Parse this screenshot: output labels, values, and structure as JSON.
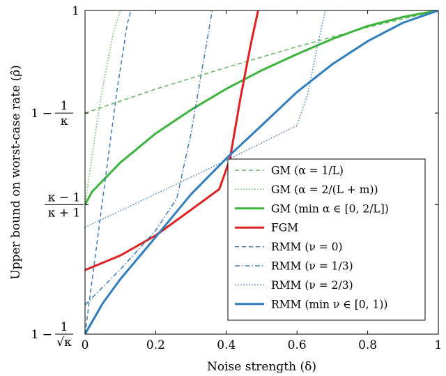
{
  "chart_data": {
    "type": "line",
    "xlabel": "Noise strength (δ)",
    "ylabel": "Upper bound on worst-case rate (ρ̂)",
    "xlim": [
      0,
      1
    ],
    "y_axis_note": "nonlinear categorical-style axis; y values expressed on a 0–1 normalized scale between bottom tick (1 − 1/√κ) and top tick (1)",
    "ylim": [
      0,
      1
    ],
    "x_ticks": [
      "0",
      "0.2",
      "0.4",
      "0.6",
      "0.8",
      "1"
    ],
    "x_tick_values": [
      0,
      0.2,
      0.4,
      0.6,
      0.8,
      1
    ],
    "y_ticks": [
      {
        "value": 0,
        "numerator": "1",
        "denominator": "√κ",
        "prefix": "1 −"
      },
      {
        "value": 0.4,
        "numerator": "κ − 1",
        "denominator": "κ + 1",
        "prefix": ""
      },
      {
        "value": 0.683,
        "numerator": "1",
        "denominator": "κ",
        "prefix": "1 −"
      },
      {
        "value": 1,
        "label": "1"
      }
    ],
    "grid": false,
    "legend_position": "bottom-right",
    "series": [
      {
        "name": "GM (α = 1/L)",
        "color": "#5fb55f",
        "dash": "dashed",
        "width": 1.5,
        "x": [
          0,
          0.2,
          0.4,
          0.6,
          0.8,
          1
        ],
        "y": [
          0.683,
          0.757,
          0.824,
          0.888,
          0.948,
          1
        ]
      },
      {
        "name": "GM (α = 2/(L + m))",
        "color": "#5fb55f",
        "dash": "dotted",
        "width": 1.5,
        "x": [
          0,
          0.02,
          0.04,
          0.06,
          0.08,
          0.1,
          1
        ],
        "y": [
          0.4,
          0.55,
          0.7,
          0.82,
          0.93,
          1,
          1
        ]
      },
      {
        "name": "GM (min α ∈ [0, 2/L])",
        "color": "#3cb43c",
        "dash": "solid",
        "width": 3,
        "x": [
          0,
          0.02,
          0.1,
          0.2,
          0.3,
          0.4,
          0.5,
          0.6,
          0.7,
          0.8,
          0.9,
          1
        ],
        "y": [
          0.4,
          0.44,
          0.53,
          0.62,
          0.693,
          0.758,
          0.815,
          0.865,
          0.912,
          0.952,
          0.98,
          1
        ]
      },
      {
        "name": "FGM",
        "color": "#e02020",
        "dash": "solid",
        "width": 3,
        "x": [
          0,
          0.1,
          0.2,
          0.3,
          0.38,
          0.41,
          0.44,
          0.47,
          0.49
        ],
        "y": [
          0.198,
          0.243,
          0.305,
          0.384,
          0.448,
          0.54,
          0.73,
          0.9,
          1
        ]
      },
      {
        "name": "RMM (ν = 0)",
        "color": "#3a7ab8",
        "dash": "dashed",
        "width": 1.5,
        "x": [
          0,
          0.03,
          0.06,
          0.09,
          0.12,
          0.13
        ],
        "y": [
          0,
          0.25,
          0.5,
          0.75,
          0.96,
          1
        ]
      },
      {
        "name": "RMM (ν = 1/3)",
        "color": "#3a7ab8",
        "dash": "dashdot",
        "width": 1.5,
        "x": [
          0,
          0.1,
          0.2,
          0.26,
          0.3,
          0.36
        ],
        "y": [
          0.09,
          0.2,
          0.32,
          0.42,
          0.62,
          1
        ]
      },
      {
        "name": "RMM (ν = 2/3)",
        "color": "#3a7ab8",
        "dash": "dotted",
        "width": 1.5,
        "x": [
          0,
          0.2,
          0.4,
          0.6,
          0.63,
          0.66,
          0.68
        ],
        "y": [
          0.33,
          0.433,
          0.537,
          0.645,
          0.74,
          0.9,
          1
        ]
      },
      {
        "name": "RMM (min ν ∈ [0, 1))",
        "color": "#2f7dbf",
        "dash": "solid",
        "width": 3,
        "x": [
          0,
          0.05,
          0.1,
          0.2,
          0.3,
          0.4,
          0.5,
          0.6,
          0.7,
          0.8,
          0.9,
          1
        ],
        "y": [
          0,
          0.095,
          0.17,
          0.3,
          0.432,
          0.543,
          0.645,
          0.748,
          0.834,
          0.905,
          0.962,
          1
        ]
      }
    ]
  }
}
